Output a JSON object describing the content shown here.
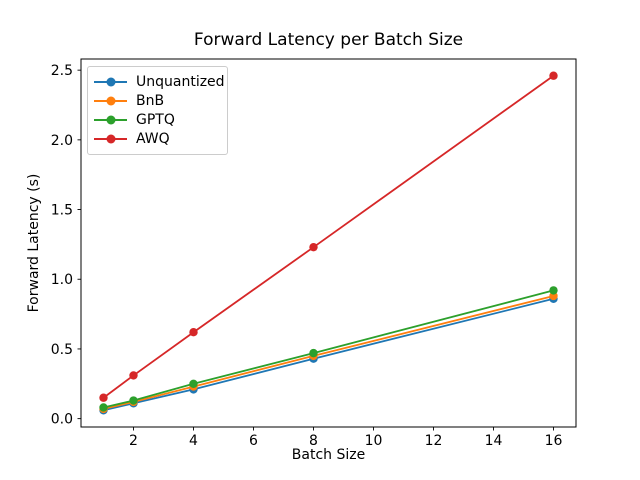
{
  "chart_data": {
    "type": "line",
    "title": "Forward Latency per Batch Size",
    "xlabel": "Batch Size",
    "ylabel": "Forward Latency (s)",
    "x": [
      1,
      2,
      4,
      8,
      16
    ],
    "series": [
      {
        "name": "Unquantized",
        "color": "#1f77b4",
        "values": [
          0.06,
          0.11,
          0.21,
          0.43,
          0.86
        ]
      },
      {
        "name": "BnB",
        "color": "#ff7f0e",
        "values": [
          0.07,
          0.12,
          0.23,
          0.45,
          0.88
        ]
      },
      {
        "name": "GPTQ",
        "color": "#2ca02c",
        "values": [
          0.08,
          0.13,
          0.25,
          0.47,
          0.92
        ]
      },
      {
        "name": "AWQ",
        "color": "#d62728",
        "values": [
          0.15,
          0.31,
          0.62,
          1.23,
          2.46
        ]
      }
    ],
    "xlim": [
      0.25,
      16.75
    ],
    "ylim": [
      -0.06,
      2.58
    ],
    "xticks": [
      "2",
      "4",
      "6",
      "8",
      "10",
      "12",
      "14",
      "16"
    ],
    "yticks": [
      "0.0",
      "0.5",
      "1.0",
      "1.5",
      "2.0",
      "2.5"
    ],
    "grid": false,
    "legend_position": "upper left",
    "marker": "o",
    "background": "#ffffff",
    "axis_color": "#000000",
    "text_color": "#000000"
  }
}
